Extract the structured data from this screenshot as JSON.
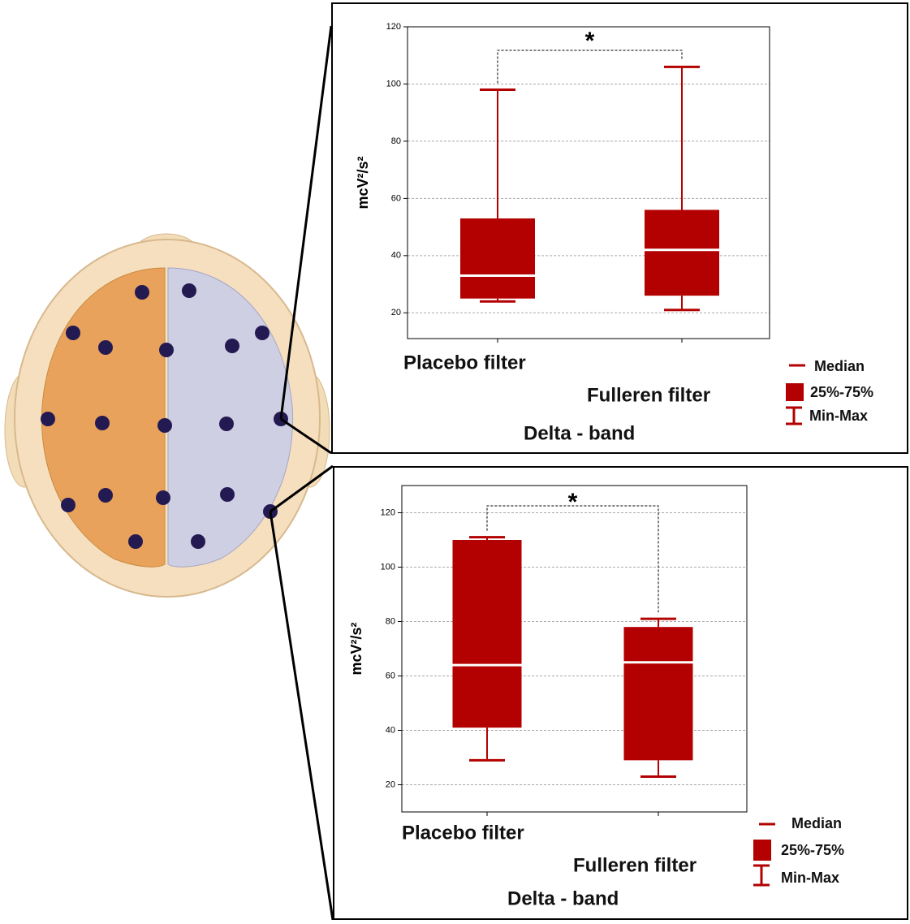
{
  "chart_data": [
    {
      "type": "box",
      "categories": [
        "Placebo filter",
        "Fulleren filter"
      ],
      "stats": {
        "min": [
          24,
          21
        ],
        "q1": [
          25,
          26
        ],
        "median": [
          33,
          42
        ],
        "q3": [
          53,
          56
        ],
        "max": [
          98,
          106
        ]
      },
      "color": "#b30000",
      "ylabel": "mcV²/s²",
      "xlabel": "Delta - band",
      "annotation": "*",
      "legend": [
        "Median",
        "25%-75%",
        "Min-Max"
      ],
      "ylim": [
        11,
        120
      ],
      "yticks": [
        20,
        40,
        60,
        80,
        100,
        120
      ],
      "grid": true
    },
    {
      "type": "box",
      "categories": [
        "Placebo filter",
        "Fulleren filter"
      ],
      "stats": {
        "min": [
          29,
          23
        ],
        "q1": [
          41,
          29
        ],
        "median": [
          64,
          65
        ],
        "q3": [
          110,
          78
        ],
        "max": [
          111,
          81
        ]
      },
      "color": "#b30000",
      "ylabel": "mcV²/s²",
      "xlabel": "Delta - band",
      "annotation": "*",
      "legend": [
        "Median",
        "25%-75%",
        "Min-Max"
      ],
      "ylim": [
        10,
        130
      ],
      "yticks": [
        20,
        40,
        60,
        80,
        100,
        120
      ],
      "grid": true
    }
  ]
}
